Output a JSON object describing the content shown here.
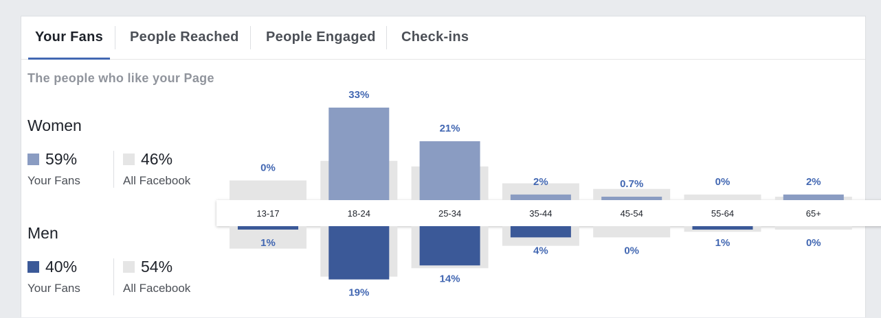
{
  "tabs": [
    {
      "label": "Your Fans",
      "active": true
    },
    {
      "label": "People Reached",
      "active": false
    },
    {
      "label": "People Engaged",
      "active": false
    },
    {
      "label": "Check-ins",
      "active": false
    }
  ],
  "subtitle": "The people who like your Page",
  "women": {
    "title": "Women",
    "fans_value": "59%",
    "fans_label": "Your Fans",
    "all_value": "46%",
    "all_label": "All Facebook"
  },
  "men": {
    "title": "Men",
    "fans_value": "40%",
    "fans_label": "Your Fans",
    "all_value": "54%",
    "all_label": "All Facebook"
  },
  "colors": {
    "women_fans": "#8a9cc2",
    "men_fans": "#3b5998",
    "all_facebook": "#e5e5e5",
    "value_label": "#4267b2",
    "tab_indicator": "#4267b2"
  },
  "chart_data": {
    "type": "bar",
    "categories": [
      "13-17",
      "18-24",
      "25-34",
      "35-44",
      "45-54",
      "55-64",
      "65+"
    ],
    "series": [
      {
        "name": "Women",
        "group": "Your Fans",
        "values": [
          0,
          33,
          21,
          2,
          0.7,
          0,
          2
        ],
        "labels": [
          "0%",
          "33%",
          "21%",
          "2%",
          "0.7%",
          "0%",
          "2%"
        ]
      },
      {
        "name": "Men",
        "group": "Your Fans",
        "values": [
          1,
          19,
          14,
          4,
          0,
          1,
          0
        ],
        "labels": [
          "1%",
          "19%",
          "14%",
          "4%",
          "0%",
          "1%",
          "0%"
        ]
      },
      {
        "name": "Women",
        "group": "All Facebook",
        "values": [
          7,
          14,
          12,
          6,
          4,
          2,
          1
        ]
      },
      {
        "name": "Men",
        "group": "All Facebook",
        "values": [
          8,
          18,
          15,
          7,
          4,
          2,
          1
        ]
      }
    ],
    "ylim": [
      0,
      35
    ]
  }
}
